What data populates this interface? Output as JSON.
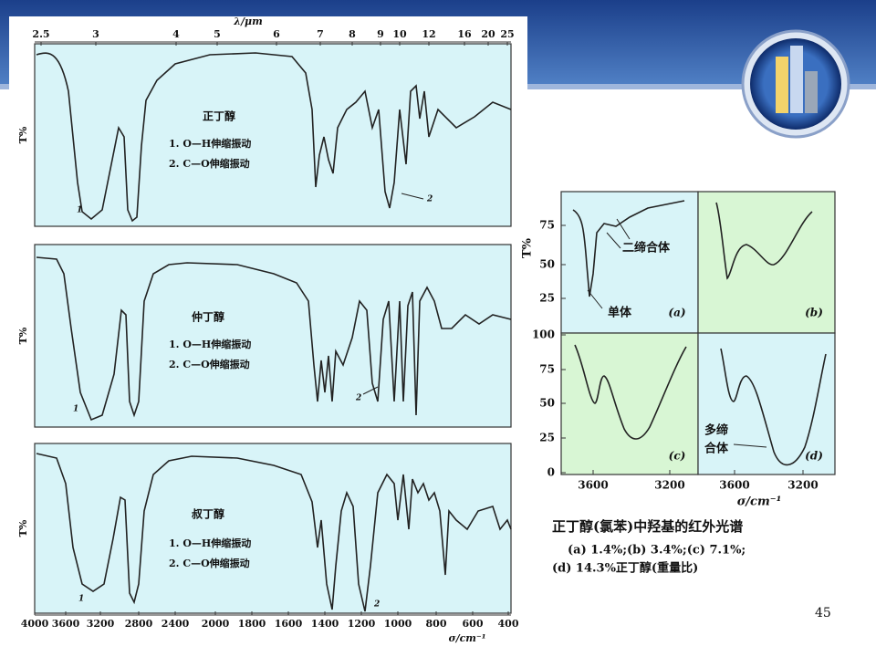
{
  "slide": {
    "page_number": "45"
  },
  "left_panel": {
    "top_axis_label": "λ/μm",
    "top_ticks": [
      "2.5",
      "3",
      "4",
      "5",
      "6",
      "7",
      "8",
      "9",
      "10",
      "12",
      "16",
      "20",
      "25"
    ],
    "bottom_ticks": [
      "4000",
      "3600",
      "3200",
      "2800",
      "2400",
      "2000",
      "1800",
      "1600",
      "1400",
      "1200",
      "1000",
      "800",
      "600",
      "400"
    ],
    "bottom_axis_label": "σ/cm⁻¹",
    "spectra": [
      {
        "compound": "正丁醇",
        "y_label": "T%",
        "notes": [
          "1.  O—H伸缩振动",
          "2.  C—O伸缩振动"
        ],
        "peak_labels": [
          "1",
          "2"
        ]
      },
      {
        "compound": "仲丁醇",
        "y_label": "T%",
        "notes": [
          "1.  O—H伸缩振动",
          "2.  C—O伸缩振动"
        ],
        "peak_labels": [
          "1",
          "2"
        ]
      },
      {
        "compound": "叔丁醇",
        "y_label": "T%",
        "notes": [
          "1.  O—H伸缩振动",
          "2.  C—O伸缩振动"
        ],
        "peak_labels": [
          "1",
          "2"
        ]
      }
    ]
  },
  "right_panel": {
    "y_label": "T%",
    "y_ticks_top": [
      "75",
      "50",
      "25"
    ],
    "y_ticks_bottom": [
      "100",
      "75",
      "50",
      "25",
      "0"
    ],
    "x_ticks": [
      "3600",
      "3200",
      "3600",
      "3200"
    ],
    "x_label": "σ/cm⁻¹",
    "panel_labels": [
      "(a)",
      "(b)",
      "(c)",
      "(d)"
    ],
    "annotations": [
      "二缔合体",
      "单体",
      "多缔",
      "合体"
    ],
    "caption": [
      "正丁醇(氯苯)中羟基的红外光谱",
      "(a) 1.4%;(b) 3.4%;(c) 7.1%;",
      "(d) 14.3%正丁醇(重量比)"
    ]
  }
}
